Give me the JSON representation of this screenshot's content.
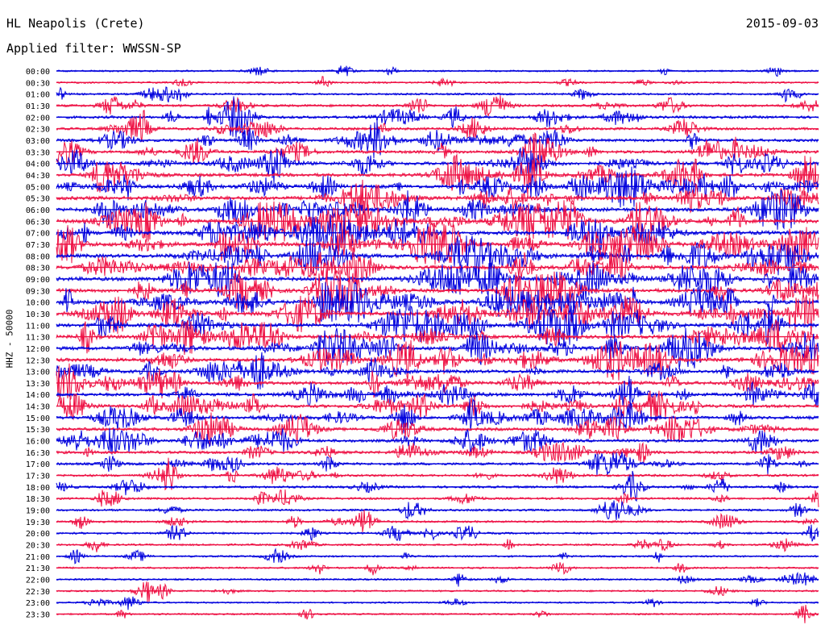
{
  "header": {
    "station": "HL Neapolis (Crete)",
    "date": "2015-09-03",
    "filter_text": "Applied filter: WWSSN-SP"
  },
  "chart_data": {
    "type": "line",
    "title": "HL Neapolis (Crete)",
    "subtitle": "Applied filter: WWSSN-SP",
    "ylabel": "HHZ - 50000",
    "row_labels": [
      "00:00",
      "00:30",
      "01:00",
      "01:30",
      "02:00",
      "02:30",
      "03:00",
      "03:30",
      "04:00",
      "04:30",
      "05:00",
      "05:30",
      "06:00",
      "06:30",
      "07:00",
      "07:30",
      "08:00",
      "08:30",
      "09:00",
      "09:30",
      "10:00",
      "10:30",
      "11:00",
      "11:30",
      "12:00",
      "12:30",
      "13:00",
      "13:30",
      "14:00",
      "14:30",
      "15:00",
      "15:30",
      "16:00",
      "16:30",
      "17:00",
      "17:30",
      "18:00",
      "18:30",
      "19:00",
      "19:30",
      "20:00",
      "20:30",
      "21:00",
      "21:30",
      "22:00",
      "22:30",
      "23:00",
      "23:30"
    ],
    "trace_colors": [
      "#0000dd",
      "#ee1144"
    ],
    "activity_by_row": [
      0.12,
      0.14,
      0.22,
      0.4,
      0.48,
      0.46,
      0.56,
      0.6,
      0.72,
      0.74,
      0.82,
      0.86,
      0.9,
      0.92,
      0.94,
      0.92,
      0.9,
      0.88,
      0.9,
      0.9,
      0.9,
      0.86,
      0.84,
      0.8,
      0.8,
      0.76,
      0.74,
      0.72,
      0.7,
      0.66,
      0.64,
      0.62,
      0.58,
      0.54,
      0.44,
      0.38,
      0.34,
      0.3,
      0.28,
      0.26,
      0.24,
      0.2,
      0.18,
      0.18,
      0.16,
      0.14,
      0.12,
      0.1
    ],
    "grid": false
  }
}
